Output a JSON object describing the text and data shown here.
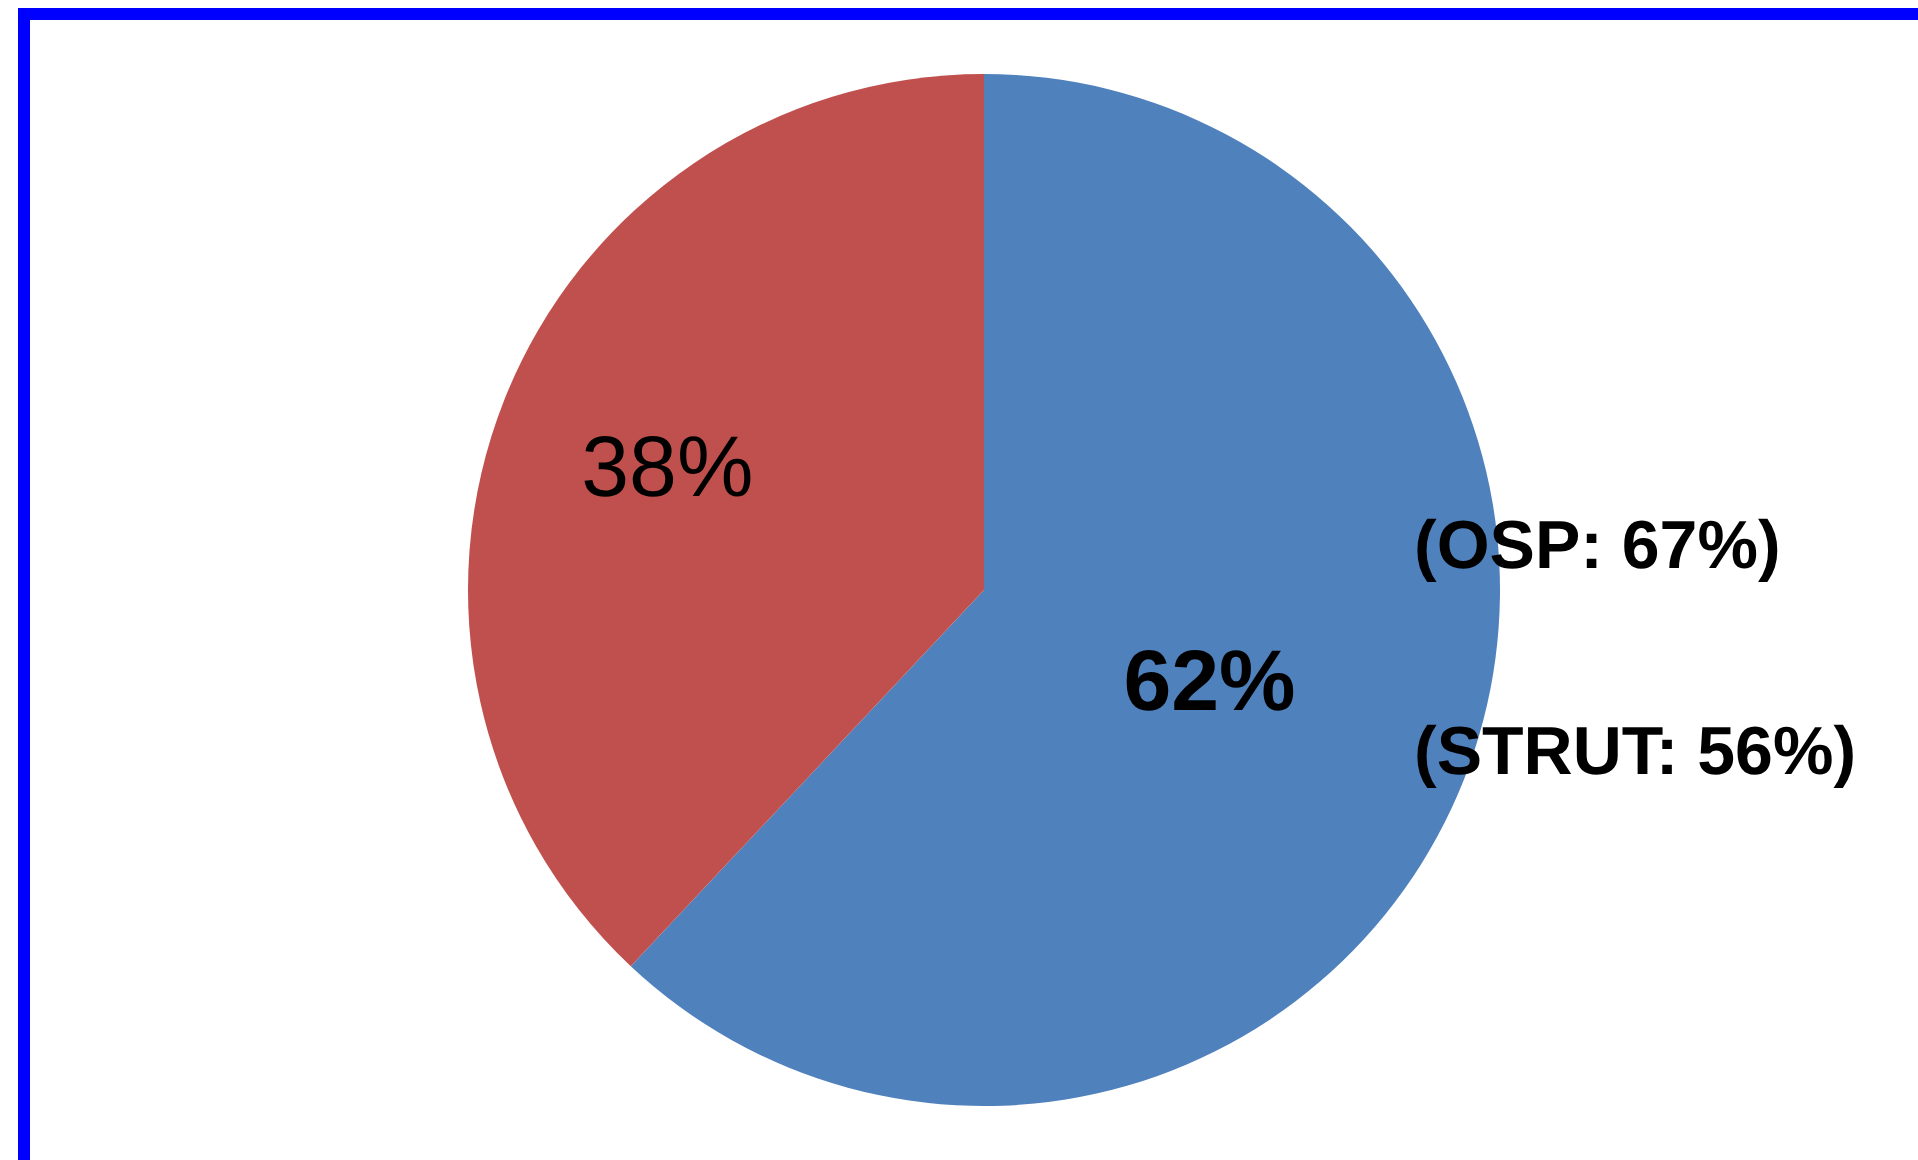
{
  "chart_data": {
    "type": "pie",
    "categories": [
      null,
      null
    ],
    "values": [
      62,
      38
    ],
    "colors": [
      "#4f81bd",
      "#c0504d"
    ],
    "value_labels": [
      "62%",
      "38%"
    ],
    "annotations": [
      "(OSP: 67%)",
      "(STRUT: 56%)"
    ]
  }
}
